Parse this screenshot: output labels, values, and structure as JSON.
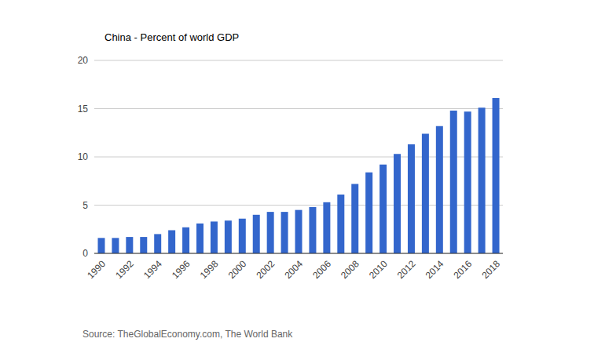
{
  "chart_data": {
    "type": "bar",
    "title": "China - Percent of world GDP",
    "source": "Source: TheGlobalEconomy.com, The World Bank",
    "categories": [
      "1990",
      null,
      "1992",
      null,
      "1994",
      null,
      "1996",
      null,
      "1998",
      null,
      "2000",
      null,
      "2002",
      null,
      "2004",
      null,
      "2006",
      null,
      "2008",
      null,
      "2010",
      null,
      "2012",
      null,
      "2014",
      null,
      "2016",
      null,
      "2018"
    ],
    "values": [
      1.6,
      1.6,
      1.7,
      1.7,
      2.0,
      2.4,
      2.7,
      3.1,
      3.3,
      3.4,
      3.6,
      4.0,
      4.3,
      4.3,
      4.5,
      4.8,
      5.3,
      6.1,
      7.2,
      8.4,
      9.2,
      10.3,
      11.3,
      12.4,
      13.2,
      14.8,
      14.7,
      15.1,
      16.1
    ],
    "color": "#3366cc",
    "ylim": [
      0,
      20
    ],
    "yticks": [
      0,
      5,
      10,
      15,
      20
    ],
    "grid": true
  }
}
